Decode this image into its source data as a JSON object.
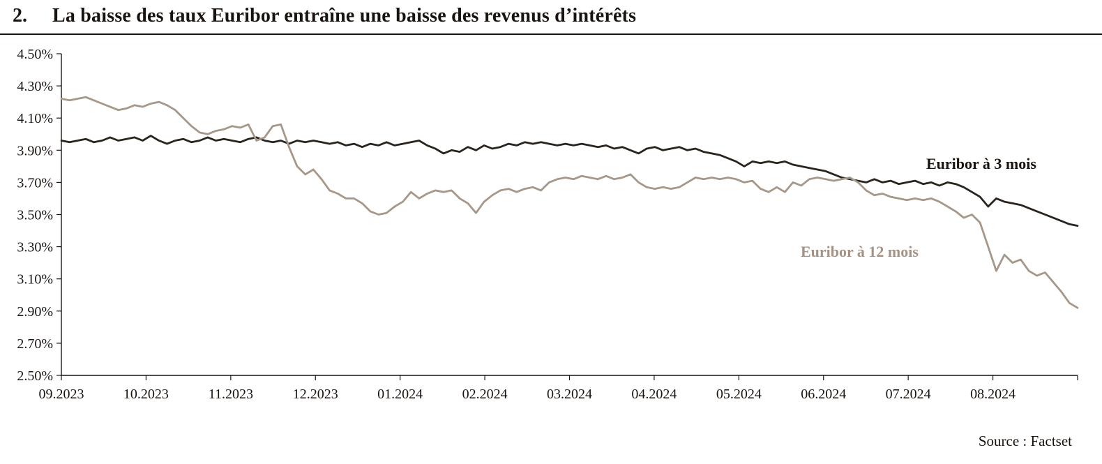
{
  "header": {
    "number": "2.",
    "title": "La baisse des taux Euribor entraîne une baisse des revenus d’intérêts"
  },
  "source_label": "Source : Factset",
  "chart_data": {
    "type": "line",
    "title": "La baisse des taux Euribor entraîne une baisse des revenus d’intérêts",
    "ylim": [
      2.5,
      4.5
    ],
    "y_tick_step": 0.2,
    "grid": false,
    "legend": "inline-labels",
    "axis_color": "#1a1410",
    "y_ticks": [
      "4.50%",
      "4.30%",
      "4.10%",
      "3.90%",
      "3.70%",
      "3.50%",
      "3.30%",
      "3.10%",
      "2.90%",
      "2.70%",
      "2.50%"
    ],
    "x_ticks": [
      "09.2023",
      "10.2023",
      "11.2023",
      "12.2023",
      "01.2024",
      "02.2024",
      "03.2024",
      "04.2024",
      "05.2024",
      "06.2024",
      "07.2024",
      "08.2024"
    ],
    "series": [
      {
        "name": "Euribor à 3 mois",
        "color": "#2a241f",
        "values": [
          3.96,
          3.95,
          3.96,
          3.97,
          3.95,
          3.96,
          3.98,
          3.96,
          3.97,
          3.98,
          3.96,
          3.99,
          3.96,
          3.94,
          3.96,
          3.97,
          3.95,
          3.96,
          3.98,
          3.96,
          3.97,
          3.96,
          3.95,
          3.97,
          3.98,
          3.96,
          3.95,
          3.96,
          3.94,
          3.96,
          3.95,
          3.96,
          3.95,
          3.94,
          3.95,
          3.93,
          3.94,
          3.92,
          3.94,
          3.93,
          3.95,
          3.93,
          3.94,
          3.95,
          3.96,
          3.93,
          3.91,
          3.88,
          3.9,
          3.89,
          3.92,
          3.9,
          3.93,
          3.91,
          3.92,
          3.94,
          3.93,
          3.95,
          3.94,
          3.95,
          3.94,
          3.93,
          3.94,
          3.93,
          3.94,
          3.93,
          3.92,
          3.93,
          3.91,
          3.92,
          3.9,
          3.88,
          3.91,
          3.92,
          3.9,
          3.91,
          3.92,
          3.9,
          3.91,
          3.89,
          3.88,
          3.87,
          3.85,
          3.83,
          3.8,
          3.83,
          3.82,
          3.83,
          3.82,
          3.83,
          3.81,
          3.8,
          3.79,
          3.78,
          3.77,
          3.75,
          3.73,
          3.72,
          3.71,
          3.7,
          3.72,
          3.7,
          3.71,
          3.69,
          3.7,
          3.71,
          3.69,
          3.7,
          3.68,
          3.7,
          3.69,
          3.67,
          3.64,
          3.61,
          3.55,
          3.6,
          3.58,
          3.57,
          3.56,
          3.54,
          3.52,
          3.5,
          3.48,
          3.46,
          3.44,
          3.43
        ]
      },
      {
        "name": "Euribor à 12 mois",
        "color": "#a59789",
        "values": [
          4.22,
          4.21,
          4.22,
          4.23,
          4.21,
          4.19,
          4.17,
          4.15,
          4.16,
          4.18,
          4.17,
          4.19,
          4.2,
          4.18,
          4.15,
          4.1,
          4.05,
          4.01,
          4.0,
          4.02,
          4.03,
          4.05,
          4.04,
          4.06,
          3.96,
          3.98,
          4.05,
          4.06,
          3.92,
          3.8,
          3.75,
          3.78,
          3.72,
          3.65,
          3.63,
          3.6,
          3.6,
          3.57,
          3.52,
          3.5,
          3.51,
          3.55,
          3.58,
          3.64,
          3.6,
          3.63,
          3.65,
          3.64,
          3.65,
          3.6,
          3.57,
          3.51,
          3.58,
          3.62,
          3.65,
          3.66,
          3.64,
          3.66,
          3.67,
          3.65,
          3.7,
          3.72,
          3.73,
          3.72,
          3.74,
          3.73,
          3.72,
          3.74,
          3.72,
          3.73,
          3.75,
          3.7,
          3.67,
          3.66,
          3.67,
          3.66,
          3.67,
          3.7,
          3.73,
          3.72,
          3.73,
          3.72,
          3.73,
          3.72,
          3.7,
          3.71,
          3.66,
          3.64,
          3.67,
          3.64,
          3.7,
          3.68,
          3.72,
          3.73,
          3.72,
          3.71,
          3.72,
          3.73,
          3.7,
          3.65,
          3.62,
          3.63,
          3.61,
          3.6,
          3.59,
          3.6,
          3.59,
          3.6,
          3.58,
          3.55,
          3.52,
          3.48,
          3.5,
          3.45,
          3.3,
          3.15,
          3.25,
          3.2,
          3.22,
          3.15,
          3.12,
          3.14,
          3.08,
          3.02,
          2.95,
          2.92
        ]
      }
    ]
  }
}
